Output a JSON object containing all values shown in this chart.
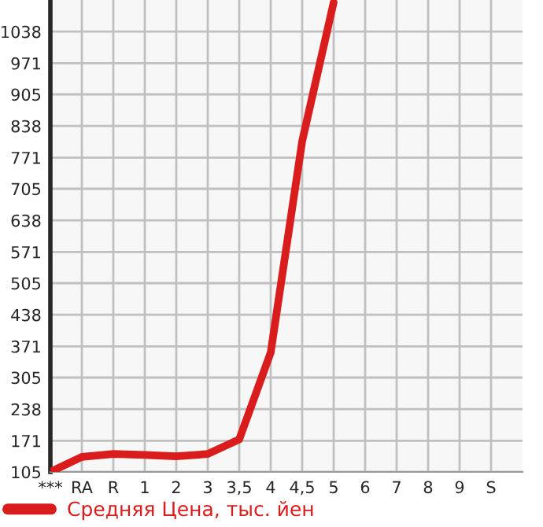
{
  "chart_data": {
    "type": "line",
    "categories": [
      "***",
      "RA",
      "R",
      "1",
      "2",
      "3",
      "3,5",
      "4",
      "4,5",
      "5",
      "6",
      "7",
      "8",
      "9",
      "S"
    ],
    "series": [
      {
        "name": "Средняя Цена, тыс. йен",
        "color": "#d91c1c",
        "values": [
          105,
          137,
          143,
          141,
          138,
          143,
          174,
          358,
          806,
          1100,
          null,
          null,
          null,
          null,
          null
        ]
      }
    ],
    "ylim": [
      105,
      1105
    ],
    "yticks": [
      105,
      171,
      238,
      305,
      371,
      438,
      505,
      571,
      638,
      705,
      771,
      838,
      905,
      971,
      1038
    ],
    "grid": true,
    "legend": "bottom left",
    "marker": "none",
    "line_style": "solid"
  }
}
